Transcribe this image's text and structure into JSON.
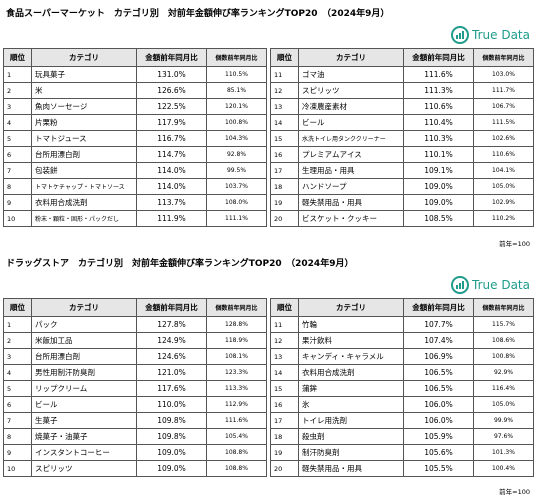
{
  "sections": [
    {
      "title": "食品スーパーマーケット　カテゴリ別　対前年金額伸び率ランキングTOP20　（2024年9月）",
      "logo": "True Data",
      "header": [
        "順位",
        "カテゴリ",
        "金額前年同月比",
        "個数前年同月比"
      ],
      "tables": [
        {
          "rows": [
            [
              "1",
              "玩具菓子",
              "131.0%",
              "110.5%"
            ],
            [
              "2",
              "米",
              "126.6%",
              "85.1%"
            ],
            [
              "3",
              "魚肉ソーセージ",
              "122.5%",
              "120.1%"
            ],
            [
              "4",
              "片栗粉",
              "117.9%",
              "100.8%"
            ],
            [
              "5",
              "トマトジュース",
              "116.7%",
              "104.3%"
            ],
            [
              "6",
              "台所用漂白剤",
              "114.7%",
              "92.8%"
            ],
            [
              "7",
              "包装餅",
              "114.0%",
              "99.5%"
            ],
            [
              "8",
              "トマトケチャップ・トマトソース",
              "114.0%",
              "103.7%"
            ],
            [
              "9",
              "衣料用合成洗剤",
              "113.7%",
              "108.0%"
            ],
            [
              "10",
              "粉末・顆粒・固形・パックだし",
              "111.9%",
              "111.1%"
            ]
          ]
        },
        {
          "rows": [
            [
              "11",
              "ゴマ油",
              "111.6%",
              "103.0%"
            ],
            [
              "12",
              "スピリッツ",
              "111.3%",
              "111.7%"
            ],
            [
              "13",
              "冷凍農産素材",
              "110.6%",
              "106.7%"
            ],
            [
              "14",
              "ビール",
              "110.4%",
              "111.5%"
            ],
            [
              "15",
              "水洗トイレ用タンククリーナー",
              "110.3%",
              "102.6%"
            ],
            [
              "16",
              "プレミアムアイス",
              "110.1%",
              "110.6%"
            ],
            [
              "17",
              "生理用品・用具",
              "109.1%",
              "104.1%"
            ],
            [
              "18",
              "ハンドソープ",
              "109.0%",
              "105.0%"
            ],
            [
              "19",
              "軽失禁用品・用具",
              "109.0%",
              "102.9%"
            ],
            [
              "20",
              "ビスケット・クッキー",
              "108.5%",
              "110.2%"
            ]
          ]
        }
      ],
      "note": "前年=100"
    },
    {
      "title": "ドラッグストア　カテゴリ別　対前年金額伸び率ランキングTOP20　（2024年9月）",
      "logo": "True Data",
      "header": [
        "順位",
        "カテゴリ",
        "金額前年同月比",
        "個数前年同月比"
      ],
      "tables": [
        {
          "rows": [
            [
              "1",
              "パック",
              "127.8%",
              "128.8%"
            ],
            [
              "2",
              "米飯加工品",
              "124.9%",
              "118.9%"
            ],
            [
              "3",
              "台所用漂白剤",
              "124.6%",
              "108.1%"
            ],
            [
              "4",
              "男性用制汗防臭剤",
              "121.0%",
              "123.3%"
            ],
            [
              "5",
              "リップクリーム",
              "117.6%",
              "113.3%"
            ],
            [
              "6",
              "ビール",
              "110.0%",
              "112.9%"
            ],
            [
              "7",
              "生菓子",
              "109.8%",
              "111.6%"
            ],
            [
              "8",
              "焼菓子・油菓子",
              "109.8%",
              "105.4%"
            ],
            [
              "9",
              "インスタントコーヒー",
              "109.0%",
              "108.8%"
            ],
            [
              "10",
              "スピリッツ",
              "109.0%",
              "108.8%"
            ]
          ]
        },
        {
          "rows": [
            [
              "11",
              "竹輪",
              "107.7%",
              "115.7%"
            ],
            [
              "12",
              "果汁飲料",
              "107.4%",
              "108.6%"
            ],
            [
              "13",
              "キャンディ・キャラメル",
              "106.9%",
              "100.8%"
            ],
            [
              "14",
              "衣料用合成洗剤",
              "106.5%",
              "92.9%"
            ],
            [
              "15",
              "蒲鉾",
              "106.5%",
              "116.4%"
            ],
            [
              "16",
              "氷",
              "106.0%",
              "105.0%"
            ],
            [
              "17",
              "トイレ用洗剤",
              "106.0%",
              "99.9%"
            ],
            [
              "18",
              "殺虫剤",
              "105.9%",
              "97.6%"
            ],
            [
              "19",
              "制汗防臭剤",
              "105.6%",
              "101.3%"
            ],
            [
              "20",
              "軽失禁用品・用具",
              "105.5%",
              "100.4%"
            ]
          ]
        }
      ],
      "note": "前年=100"
    }
  ]
}
